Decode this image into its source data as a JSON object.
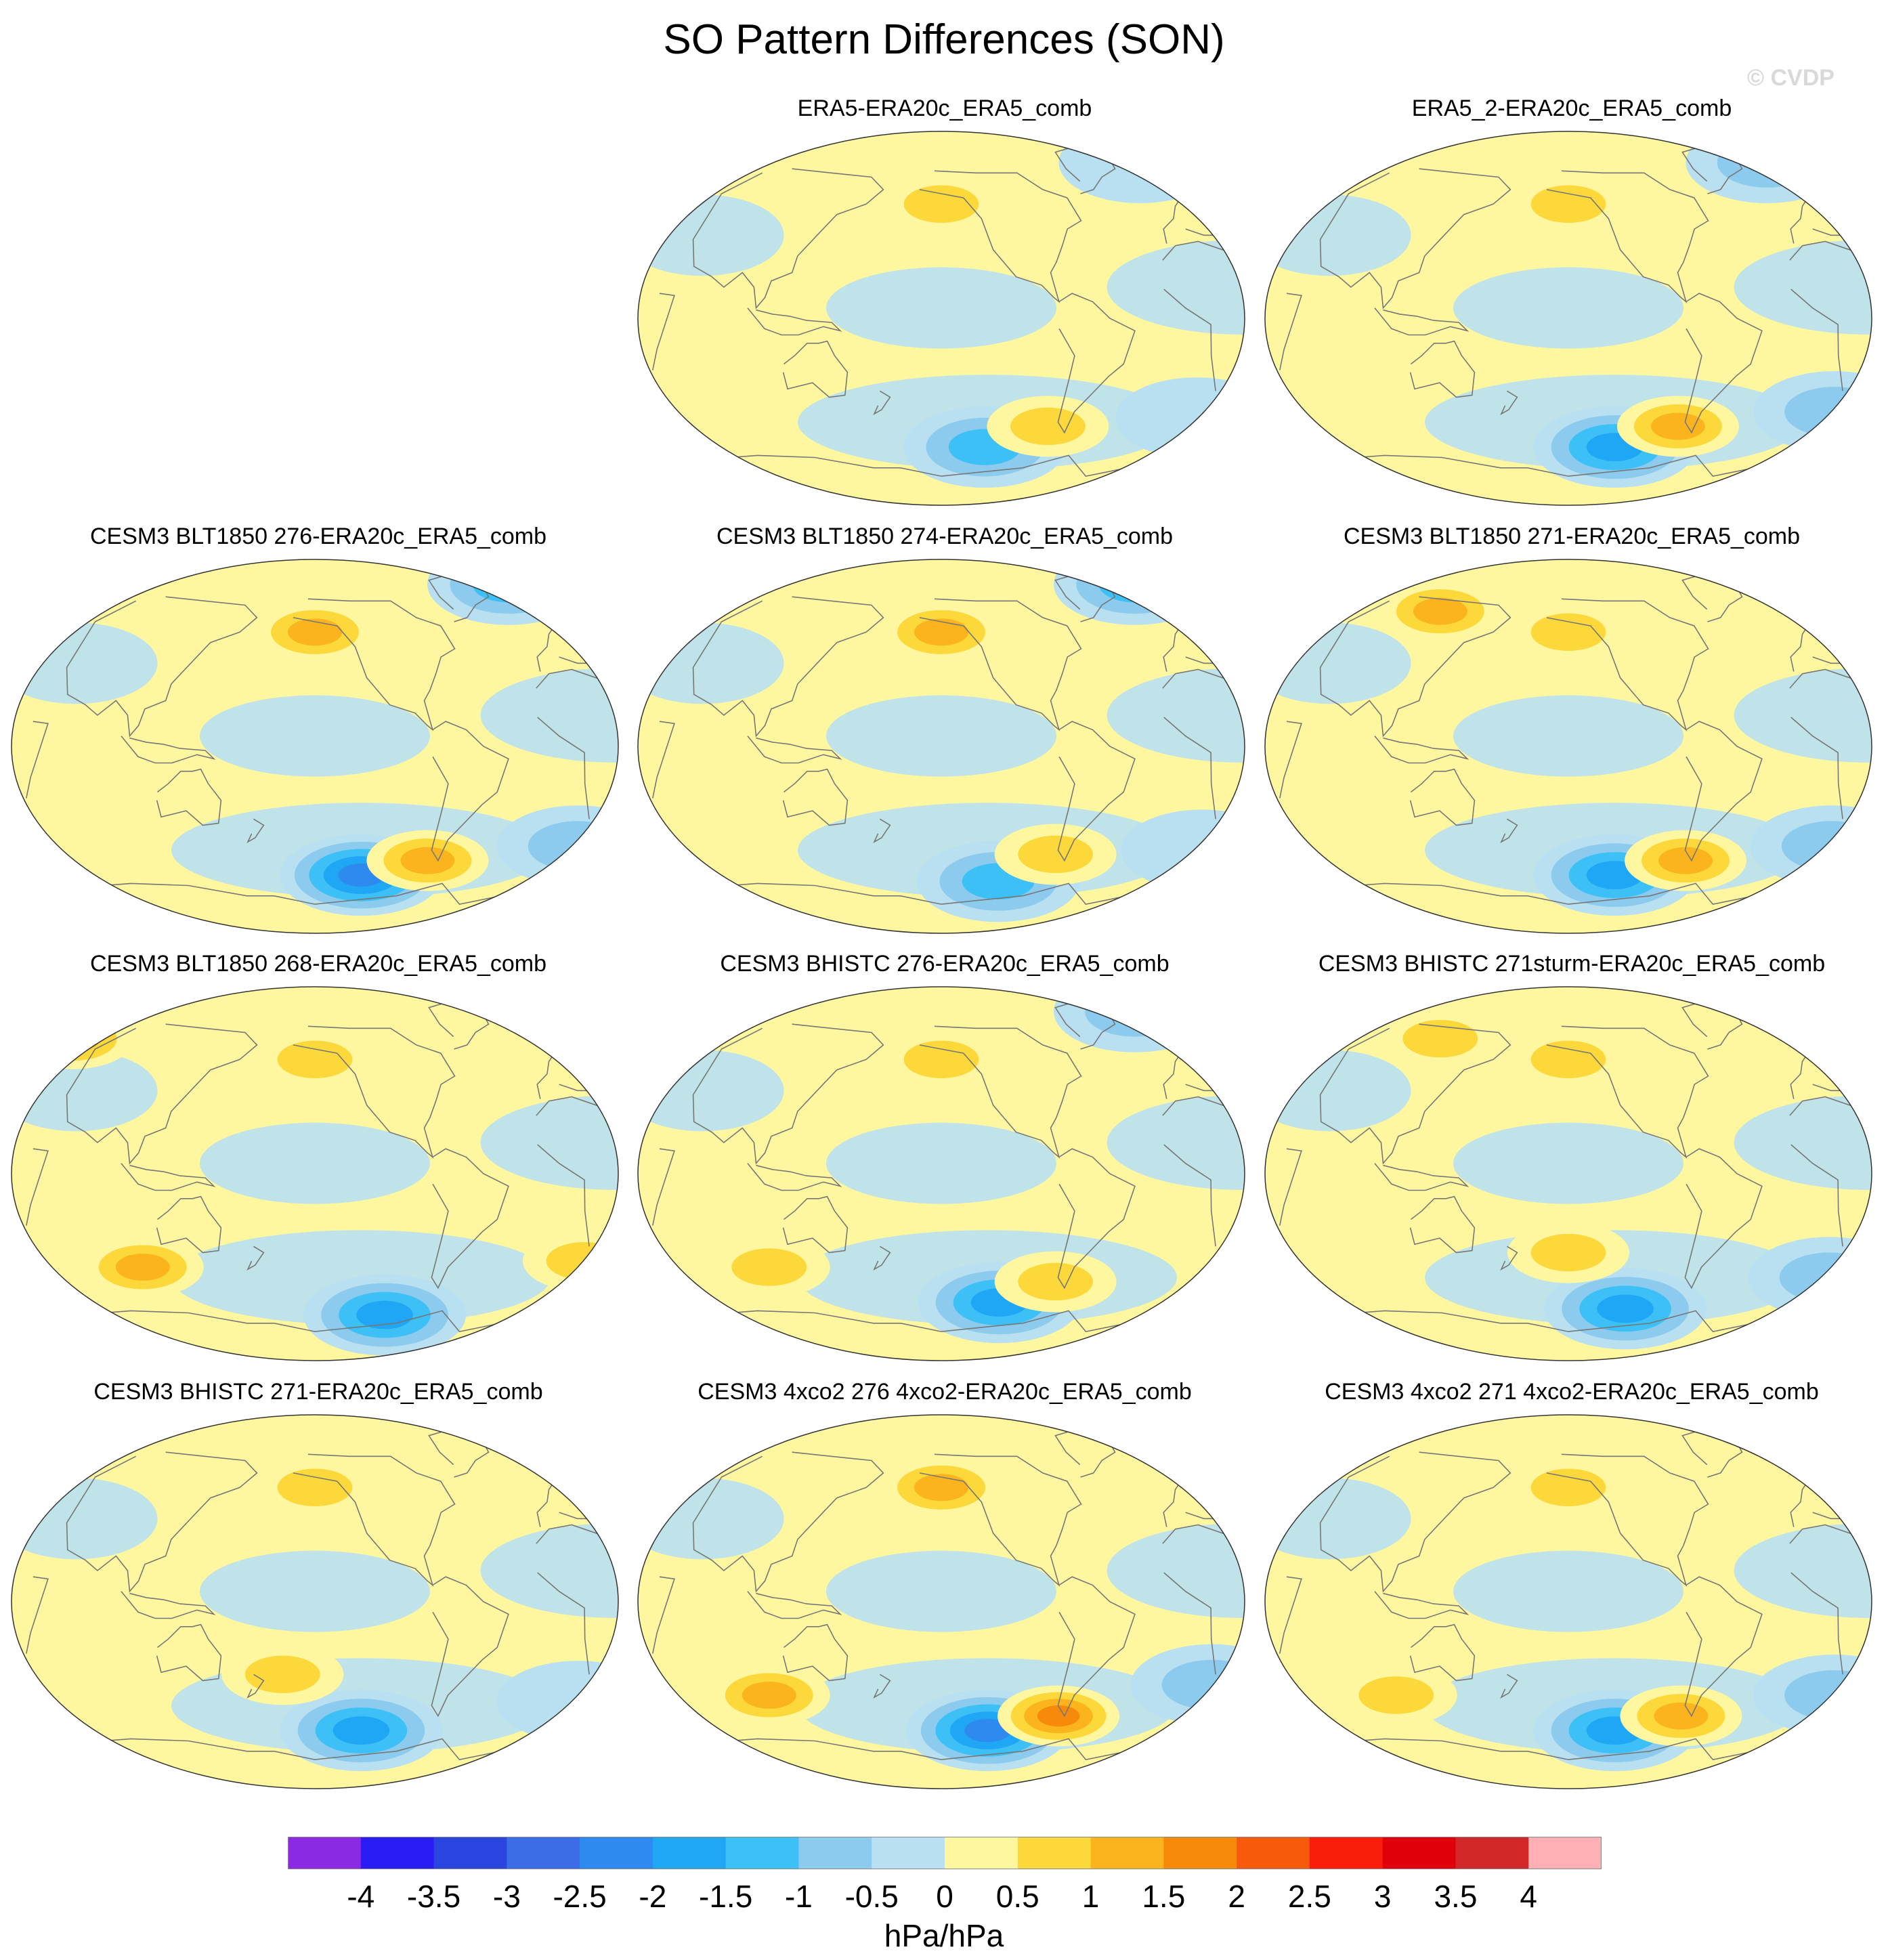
{
  "title": "SO Pattern Differences (SON)",
  "watermark": "© CVDP",
  "colors": {
    "ocean_neutral_pos": "#fff7a0",
    "neutral_neg": "#b8e0f0",
    "land_outline": "#777777",
    "map_edge": "#333333"
  },
  "chart_data": {
    "type": "heatmap",
    "projection": "Robinson (global)",
    "variable": "Southern Oscillation sea level pressure pattern difference",
    "season": "SON",
    "units": "hPa/hPa",
    "colorbar": {
      "levels": [
        -4,
        -3.5,
        -3,
        -2.5,
        -2,
        -1.5,
        -1,
        -0.5,
        0,
        0.5,
        1,
        1.5,
        2,
        2.5,
        3,
        3.5,
        4
      ],
      "tick_labels": [
        "-4",
        "-3.5",
        "-3",
        "-2.5",
        "-2",
        "-1.5",
        "-1",
        "-0.5",
        "0",
        "0.5",
        "1",
        "1.5",
        "2",
        "2.5",
        "3",
        "3.5",
        "4"
      ],
      "colors": [
        "#8a2be2",
        "#2a1cf5",
        "#2a45e0",
        "#3b6ee6",
        "#2f8af0",
        "#1fa6f5",
        "#3cc0f5",
        "#8ccbee",
        "#b8e0f0",
        "#fff7a0",
        "#fcd83a",
        "#fbb41e",
        "#f88a0a",
        "#f65a0a",
        "#fa1e0a",
        "#e0000a",
        "#d22828",
        "#ffb0b4"
      ]
    },
    "panels": [
      {
        "label": "ERA5-ERA20c_ERA5_comb",
        "min_level": -1.5,
        "max_level": 1,
        "features": [
          {
            "kind": "pos",
            "lon": -150,
            "lat": 55,
            "value": 1.0
          },
          {
            "kind": "neg",
            "lon": 0,
            "lat": 75,
            "value": -0.5
          },
          {
            "kind": "neg",
            "lon": -120,
            "lat": -62,
            "value": -1.5
          },
          {
            "kind": "pos",
            "lon": -80,
            "lat": -52,
            "value": 1.0
          },
          {
            "kind": "neg",
            "lon": 15,
            "lat": -48,
            "value": -0.5
          }
        ]
      },
      {
        "label": "ERA5_2-ERA20c_ERA5_comb",
        "min_level": -2,
        "max_level": 1.5,
        "features": [
          {
            "kind": "pos",
            "lon": -150,
            "lat": 55,
            "value": 1.0
          },
          {
            "kind": "neg",
            "lon": 0,
            "lat": 75,
            "value": -1.0
          },
          {
            "kind": "neg",
            "lon": -118,
            "lat": -62,
            "value": -2.0
          },
          {
            "kind": "pos",
            "lon": -78,
            "lat": -52,
            "value": 1.5
          },
          {
            "kind": "neg",
            "lon": 20,
            "lat": -45,
            "value": -1.0
          }
        ]
      },
      {
        "label": "CESM3 BLT1850 276-ERA20c_ERA5_comb",
        "min_level": -2.5,
        "max_level": 1.5,
        "features": [
          {
            "kind": "pos",
            "lon": -150,
            "lat": 55,
            "value": 1.5
          },
          {
            "kind": "neg",
            "lon": 0,
            "lat": 78,
            "value": -1.5
          },
          {
            "kind": "neg",
            "lon": -118,
            "lat": -62,
            "value": -2.5
          },
          {
            "kind": "pos",
            "lon": -75,
            "lat": -55,
            "value": 1.5
          },
          {
            "kind": "neg",
            "lon": 20,
            "lat": -48,
            "value": -1.0
          }
        ]
      },
      {
        "label": "CESM3 BLT1850 274-ERA20c_ERA5_comb",
        "min_level": -1.5,
        "max_level": 1.5,
        "features": [
          {
            "kind": "pos",
            "lon": -150,
            "lat": 55,
            "value": 1.5
          },
          {
            "kind": "neg",
            "lon": 0,
            "lat": 78,
            "value": -1.5
          },
          {
            "kind": "neg",
            "lon": -110,
            "lat": -65,
            "value": -1.5
          },
          {
            "kind": "pos",
            "lon": -75,
            "lat": -52,
            "value": 1.0
          },
          {
            "kind": "neg",
            "lon": 20,
            "lat": -50,
            "value": -0.5
          }
        ]
      },
      {
        "label": "CESM3 BLT1850 271-ERA20c_ERA5_comb",
        "min_level": -2,
        "max_level": 1.5,
        "features": [
          {
            "kind": "pos",
            "lon": 120,
            "lat": 65,
            "value": 1.5
          },
          {
            "kind": "pos",
            "lon": -150,
            "lat": 55,
            "value": 1.0
          },
          {
            "kind": "neg",
            "lon": -118,
            "lat": -62,
            "value": -2.0
          },
          {
            "kind": "pos",
            "lon": -72,
            "lat": -55,
            "value": 1.5
          },
          {
            "kind": "neg",
            "lon": 20,
            "lat": -48,
            "value": -1.0
          }
        ]
      },
      {
        "label": "CESM3 BLT1850 268-ERA20c_ERA5_comb",
        "min_level": -2,
        "max_level": 1.5,
        "features": [
          {
            "kind": "pos",
            "lon": 40,
            "lat": 65,
            "value": 1.5
          },
          {
            "kind": "pos",
            "lon": 100,
            "lat": -45,
            "value": 1.5
          },
          {
            "kind": "neg",
            "lon": -100,
            "lat": -68,
            "value": -2.0
          },
          {
            "kind": "pos",
            "lon": -150,
            "lat": 55,
            "value": 1.0
          },
          {
            "kind": "pos",
            "lon": 20,
            "lat": -42,
            "value": 1.0
          }
        ]
      },
      {
        "label": "CESM3 BHISTC 276-ERA20c_ERA5_comb",
        "min_level": -2,
        "max_level": 1.0,
        "features": [
          {
            "kind": "pos",
            "lon": -150,
            "lat": 55,
            "value": 1.0
          },
          {
            "kind": "neg",
            "lon": 0,
            "lat": 78,
            "value": -1.0
          },
          {
            "kind": "neg",
            "lon": -110,
            "lat": -62,
            "value": -2.0
          },
          {
            "kind": "pos",
            "lon": 100,
            "lat": -45,
            "value": 1.0
          },
          {
            "kind": "pos",
            "lon": -75,
            "lat": -52,
            "value": 1.0
          }
        ]
      },
      {
        "label": "CESM3 BHISTC 271sturm-ERA20c_ERA5_comb",
        "min_level": -2,
        "max_level": 1.0,
        "features": [
          {
            "kind": "pos",
            "lon": 120,
            "lat": 65,
            "value": 1.0
          },
          {
            "kind": "pos",
            "lon": -150,
            "lat": 55,
            "value": 1.0
          },
          {
            "kind": "neg",
            "lon": -110,
            "lat": -65,
            "value": -2.0
          },
          {
            "kind": "pos",
            "lon": -150,
            "lat": -38,
            "value": 1.0
          },
          {
            "kind": "neg",
            "lon": 20,
            "lat": -50,
            "value": -1.0
          }
        ]
      },
      {
        "label": "CESM3 BHISTC 271-ERA20c_ERA5_comb",
        "min_level": -2,
        "max_level": 1.0,
        "features": [
          {
            "kind": "pos",
            "lon": -150,
            "lat": 55,
            "value": 1.0
          },
          {
            "kind": "neg",
            "lon": -118,
            "lat": -62,
            "value": -2.0
          },
          {
            "kind": "pos",
            "lon": -170,
            "lat": -35,
            "value": 1.0
          },
          {
            "kind": "neg",
            "lon": 20,
            "lat": -48,
            "value": -0.5
          }
        ]
      },
      {
        "label": "CESM3 4xco2 276 4xco2-ERA20c_ERA5_comb",
        "min_level": -2.5,
        "max_level": 2,
        "features": [
          {
            "kind": "pos",
            "lon": -150,
            "lat": 55,
            "value": 1.5
          },
          {
            "kind": "pos",
            "lon": 100,
            "lat": -45,
            "value": 1.5
          },
          {
            "kind": "neg",
            "lon": -118,
            "lat": -62,
            "value": -2.5
          },
          {
            "kind": "pos",
            "lon": -72,
            "lat": -55,
            "value": 2.0
          },
          {
            "kind": "neg",
            "lon": 20,
            "lat": -40,
            "value": -1.0
          }
        ]
      },
      {
        "label": "CESM3 4xco2 271 4xco2-ERA20c_ERA5_comb",
        "min_level": -2,
        "max_level": 1.5,
        "features": [
          {
            "kind": "pos",
            "lon": -150,
            "lat": 55,
            "value": 1.0
          },
          {
            "kind": "pos",
            "lon": 100,
            "lat": -45,
            "value": 1.0
          },
          {
            "kind": "neg",
            "lon": -118,
            "lat": -62,
            "value": -2.0
          },
          {
            "kind": "pos",
            "lon": -75,
            "lat": -55,
            "value": 1.5
          },
          {
            "kind": "neg",
            "lon": 20,
            "lat": -45,
            "value": -1.0
          }
        ]
      }
    ]
  }
}
